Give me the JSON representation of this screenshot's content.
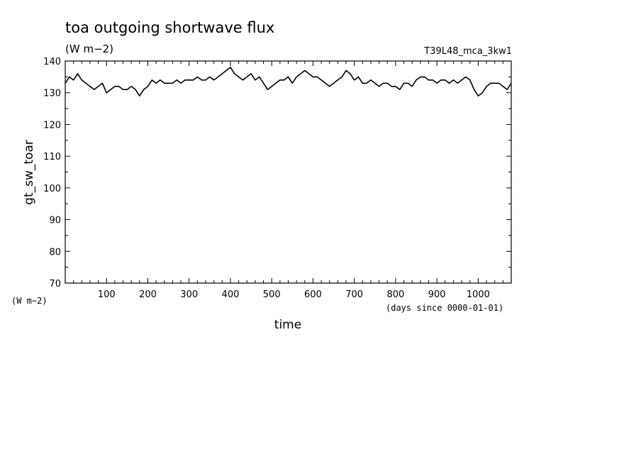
{
  "chart_data": {
    "type": "line",
    "title": "toa outgoing shortwave flux",
    "units": "(W m−2)",
    "run_label": "T39L48_mca_3kw1",
    "xlabel": "time",
    "x_units": "(days since 0000-01-01)",
    "ylabel": "gt_sw_toar",
    "y_units": "(W m−2)",
    "xlim": [
      0,
      1080
    ],
    "ylim": [
      70,
      140
    ],
    "x_ticks": [
      100,
      200,
      300,
      400,
      500,
      600,
      700,
      800,
      900,
      1000
    ],
    "x_tick_labels": [
      "100",
      "200",
      "300",
      "400",
      "500",
      "600",
      "700",
      "800",
      "900",
      "1000"
    ],
    "y_ticks": [
      70,
      80,
      90,
      100,
      110,
      120,
      130,
      140
    ],
    "y_tick_labels": [
      "70",
      "80",
      "90",
      "100",
      "110",
      "120",
      "130",
      "140"
    ],
    "grid": false,
    "series": [
      {
        "x": [
          0,
          10,
          20,
          30,
          40,
          50,
          60,
          70,
          80,
          90,
          100,
          110,
          120,
          130,
          140,
          150,
          160,
          170,
          180,
          190,
          200,
          210,
          220,
          230,
          240,
          250,
          260,
          270,
          280,
          290,
          300,
          310,
          320,
          330,
          340,
          350,
          360,
          370,
          380,
          390,
          400,
          410,
          420,
          430,
          440,
          450,
          460,
          470,
          480,
          490,
          500,
          510,
          520,
          530,
          540,
          550,
          560,
          570,
          580,
          590,
          600,
          610,
          620,
          630,
          640,
          650,
          660,
          670,
          680,
          690,
          700,
          710,
          720,
          730,
          740,
          750,
          760,
          770,
          780,
          790,
          800,
          810,
          820,
          830,
          840,
          850,
          860,
          870,
          880,
          890,
          900,
          910,
          920,
          930,
          940,
          950,
          960,
          970,
          980,
          990,
          1000,
          1010,
          1020,
          1030,
          1040,
          1050,
          1060,
          1070,
          1080
        ],
        "y": [
          133,
          135,
          134,
          136,
          134,
          133,
          132,
          131,
          132,
          133,
          130,
          131,
          132,
          132,
          131,
          131,
          132,
          131,
          129,
          131,
          132,
          134,
          133,
          134,
          133,
          133,
          133,
          134,
          133,
          134,
          134,
          134,
          135,
          134,
          134,
          135,
          134,
          135,
          136,
          137,
          138,
          136,
          135,
          134,
          135,
          136,
          134,
          135,
          133,
          131,
          132,
          133,
          134,
          134,
          135,
          133,
          135,
          136,
          137,
          136,
          135,
          135,
          134,
          133,
          132,
          133,
          134,
          135,
          137,
          136,
          134,
          135,
          133,
          133,
          134,
          133,
          132,
          133,
          133,
          132,
          132,
          131,
          133,
          133,
          132,
          134,
          135,
          135,
          134,
          134,
          133,
          134,
          134,
          133,
          134,
          133,
          134,
          135,
          134,
          131,
          129,
          130,
          132,
          133,
          133,
          133,
          132,
          131,
          133
        ]
      }
    ]
  }
}
